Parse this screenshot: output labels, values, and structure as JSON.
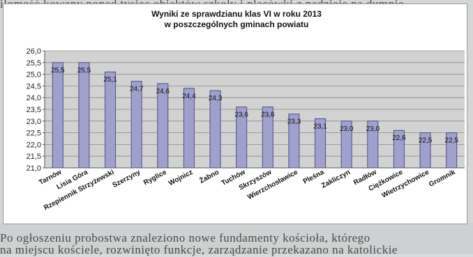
{
  "chart_data": {
    "type": "bar",
    "title": "Wyniki ze sprawdzianu klas VI w roku 2013",
    "subtitle": "w poszczególnych gminach powiatu",
    "xlabel": "",
    "ylabel": "",
    "ylim": [
      21.0,
      26.0
    ],
    "yticks": [
      "21,0",
      "21,5",
      "22,0",
      "22,5",
      "23,0",
      "23,5",
      "24,0",
      "24,5",
      "25,0",
      "25,5",
      "26,0"
    ],
    "categories": [
      "Tarnów",
      "Lisia Góra",
      "Rzepiennik Strzyżewski",
      "Szerzyny",
      "Ryglice",
      "Wojnicz",
      "Żabno",
      "Tuchów",
      "Skrzyszów",
      "Wierzchosławice",
      "Pleśna",
      "Zakliczyn",
      "Radłów",
      "Ciężkowice",
      "Wietrzychowice",
      "Gromnik"
    ],
    "values": [
      25.5,
      25.5,
      25.1,
      24.7,
      24.6,
      24.4,
      24.3,
      23.6,
      23.6,
      23.3,
      23.1,
      23.0,
      23.0,
      22.6,
      22.5,
      22.5
    ],
    "data_labels": [
      "25,5",
      "25,5",
      "25,1",
      "24,7",
      "24,6",
      "24,4",
      "24,3",
      "23,6",
      "23,6",
      "23,3",
      "23,1",
      "23,0",
      "23,0",
      "22,6",
      "22,5",
      "22,5"
    ],
    "grid": true,
    "legend": "none",
    "colors": {
      "bar": "#9fa0cc",
      "bar_edge": "#4e4f86",
      "plot_bg": "#d2d2d2",
      "grid": "#8a8a8a"
    }
  }
}
